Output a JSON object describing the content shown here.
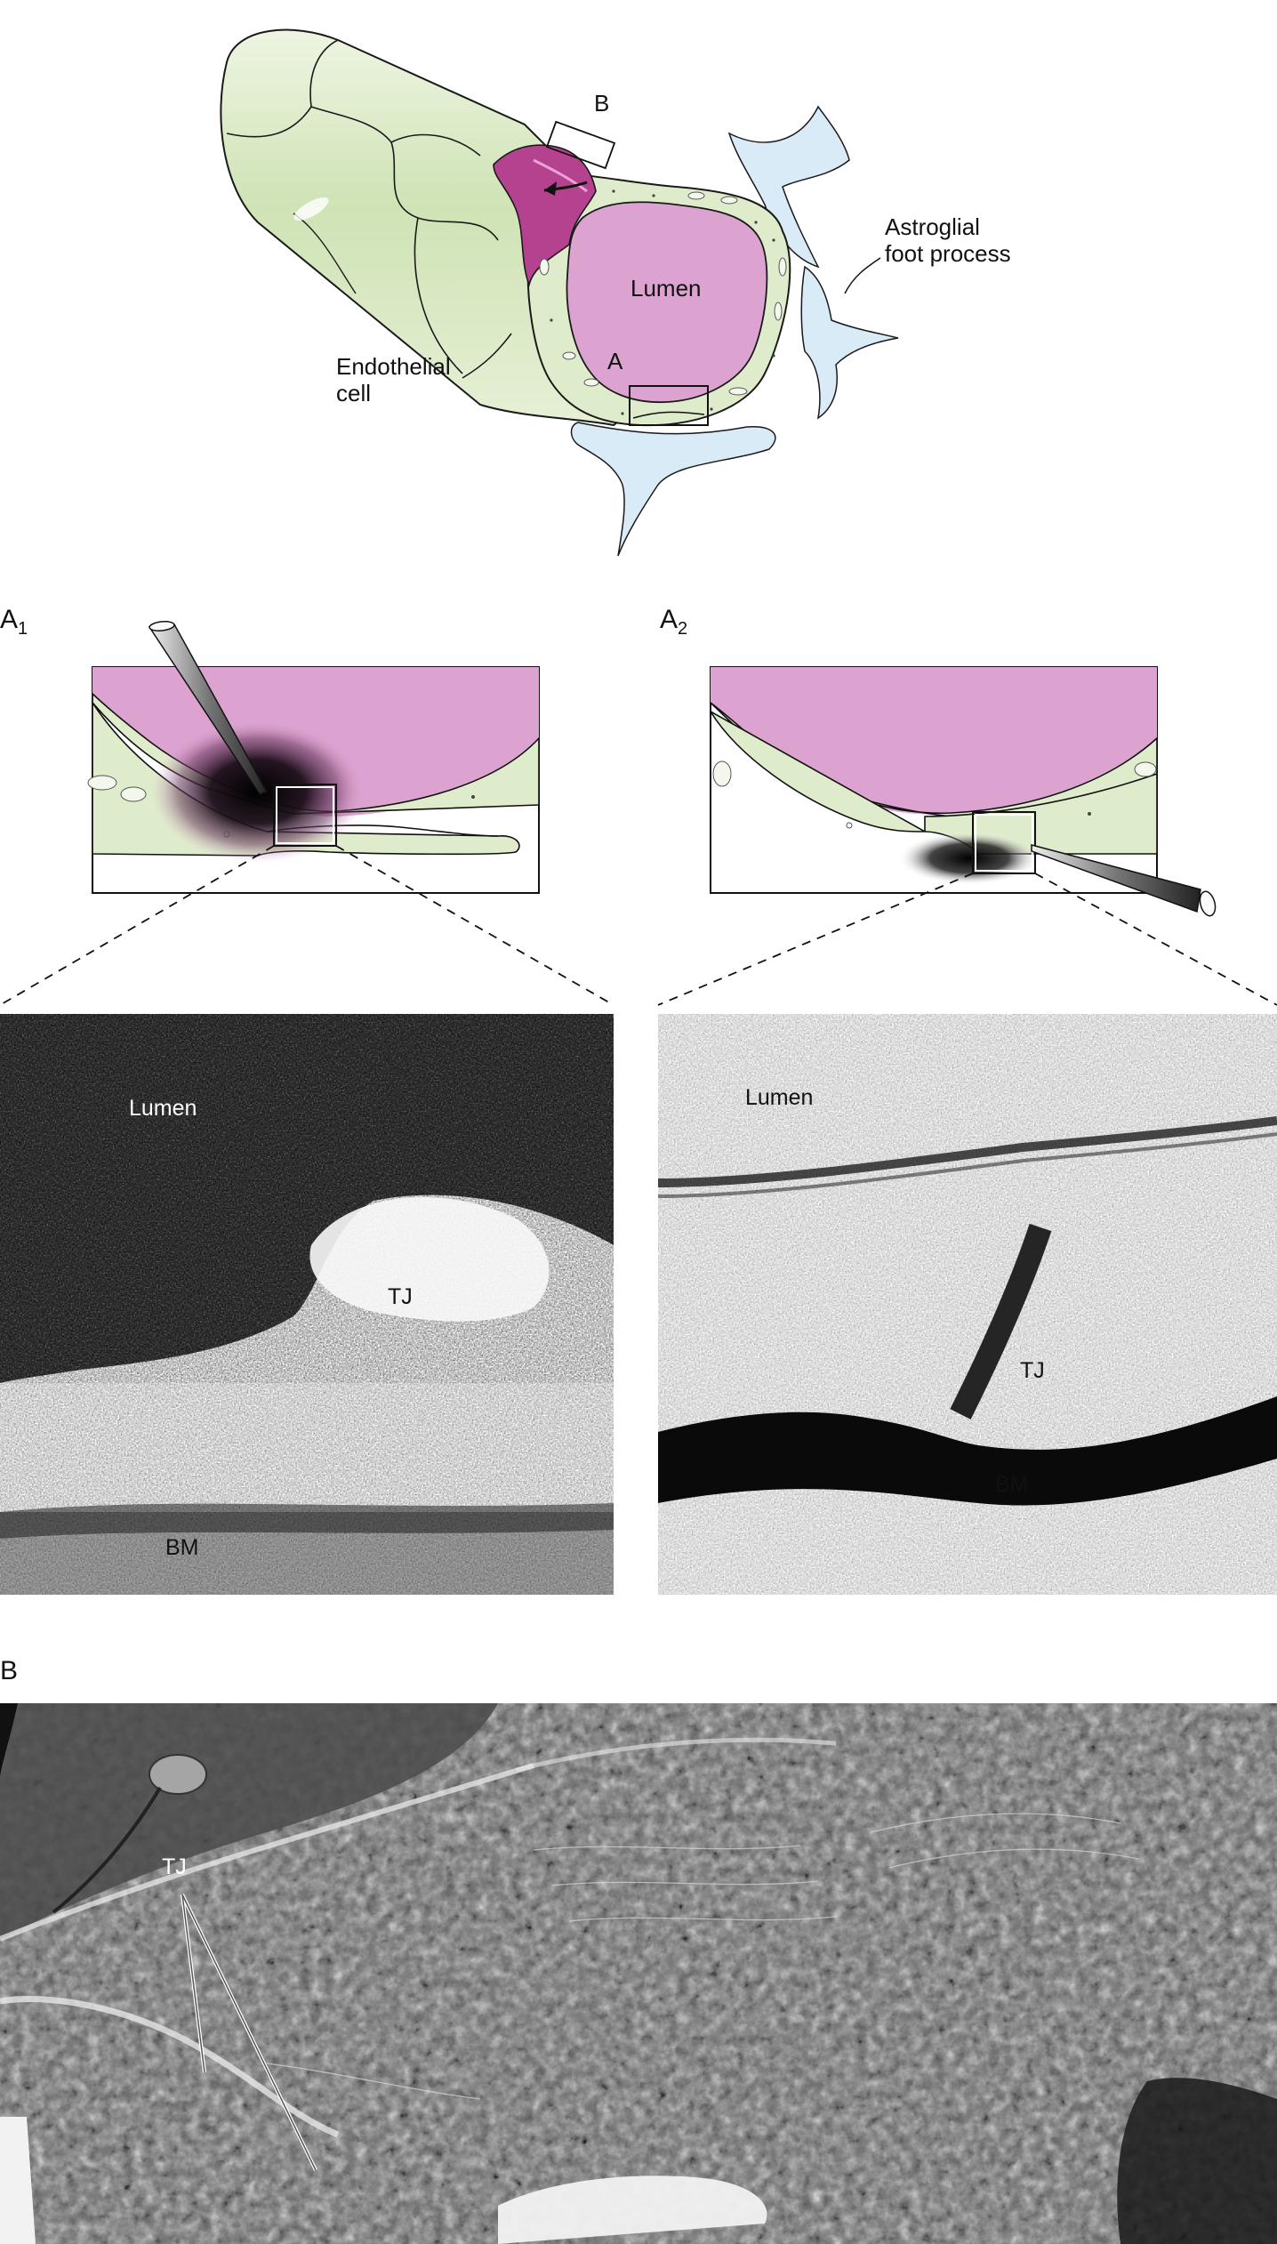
{
  "top_diagram": {
    "labels": {
      "box_b": "B",
      "box_a": "A",
      "lumen": "Lumen",
      "astroglial_line1": "Astroglial",
      "astroglial_line2": "foot process",
      "endothelial_line1": "Endothelial",
      "endothelial_line2": "cell"
    }
  },
  "panel_a1": {
    "label_main": "A",
    "label_sub": "1",
    "micrograph": {
      "lumen": "Lumen",
      "tj": "TJ",
      "bm": "BM"
    }
  },
  "panel_a2": {
    "label_main": "A",
    "label_sub": "2",
    "micrograph": {
      "lumen": "Lumen",
      "tj": "TJ",
      "bm": "BM"
    }
  },
  "panel_b": {
    "label": "B",
    "tj": "TJ"
  },
  "colors": {
    "lumen_pink": "#dca3d0",
    "lumen_dark_pink": "#b5428f",
    "endothelial_green": "#dfeccb",
    "astroglia_blue": "#d8ebf6",
    "outline": "#1a1a1a"
  }
}
